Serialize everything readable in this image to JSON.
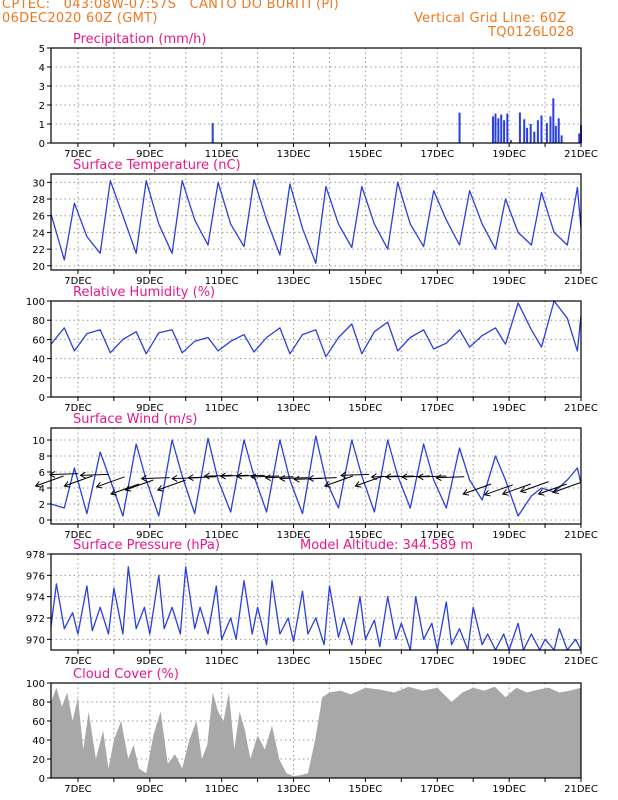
{
  "header": {
    "line1": "CPTEC:   043:08W-07:57S   CANTO DO BURITI (PI)",
    "line2": "06DEC2020 60Z (GMT)",
    "grid_note": "Vertical Grid Line: 60Z",
    "model": "TQ0126L028"
  },
  "colors": {
    "header": "#f07820",
    "title": "#e8178a",
    "series": "#2a3fe0",
    "cloud": "#a8a8a8"
  },
  "chart_data": [
    {
      "id": "precip",
      "type": "bar",
      "title": "Precipitation (mm/h)",
      "ylim": [
        0,
        5
      ],
      "yticks": [
        0,
        1,
        2,
        3,
        4,
        5
      ],
      "xlim": [
        6.25,
        21
      ],
      "xticks": [
        "7DEC",
        "9DEC",
        "11DEC",
        "13DEC",
        "15DEC",
        "17DEC",
        "19DEC",
        "21DEC"
      ],
      "grid": true,
      "x": [
        10.75,
        17.62,
        18.55,
        18.62,
        18.7,
        18.78,
        18.86,
        18.95,
        19.05,
        19.3,
        19.42,
        19.5,
        19.6,
        19.7,
        19.8,
        19.9,
        20.05,
        20.15,
        20.23,
        20.3,
        20.38,
        20.46,
        20.95,
        21.0
      ],
      "values": [
        1.05,
        1.6,
        1.4,
        1.55,
        1.3,
        1.5,
        1.2,
        1.55,
        0.15,
        1.6,
        1.25,
        0.8,
        1.0,
        0.6,
        1.2,
        1.45,
        1.05,
        1.4,
        2.35,
        0.9,
        1.3,
        0.4,
        0.5,
        0.95
      ]
    },
    {
      "id": "temp",
      "type": "line",
      "title": "Surface Temperature (nC)",
      "ylim": [
        19.5,
        31
      ],
      "yticks": [
        20,
        22,
        24,
        26,
        28,
        30
      ],
      "xlim": [
        6.25,
        21
      ],
      "xticks": [
        "7DEC",
        "9DEC",
        "11DEC",
        "13DEC",
        "15DEC",
        "17DEC",
        "19DEC",
        "21DEC"
      ],
      "grid": true,
      "series": [
        {
          "x": [
            6.25,
            6.5,
            6.62,
            6.9,
            7.25,
            7.62,
            7.9,
            8.25,
            8.62,
            8.9,
            9.25,
            9.62,
            9.9,
            10.25,
            10.62,
            10.9,
            11.25,
            11.62,
            11.9,
            12.25,
            12.62,
            12.9,
            13.25,
            13.62,
            13.9,
            14.25,
            14.62,
            14.9,
            15.25,
            15.62,
            15.9,
            16.25,
            16.62,
            16.9,
            17.25,
            17.62,
            17.9,
            18.25,
            18.62,
            18.9,
            19.25,
            19.62,
            19.9,
            20.25,
            20.62,
            20.9,
            21.0
          ],
          "values": [
            26.2,
            22.5,
            20.7,
            27.5,
            23.5,
            21.5,
            30.2,
            26,
            21.5,
            30.2,
            25,
            21.5,
            30.2,
            25.5,
            22.5,
            30,
            25,
            22.3,
            30.3,
            25.5,
            21.3,
            29.8,
            24.5,
            20.3,
            29.5,
            25,
            22.2,
            29.5,
            25,
            22,
            30,
            25,
            22.3,
            29,
            25.5,
            22.5,
            29,
            25,
            22,
            28,
            24,
            22.5,
            28.8,
            24,
            22.5,
            29.4,
            24.5
          ]
        }
      ]
    },
    {
      "id": "rh",
      "type": "line",
      "title": "Relative Humidity (%)",
      "ylim": [
        0,
        100
      ],
      "yticks": [
        0,
        20,
        40,
        60,
        80,
        100
      ],
      "xlim": [
        6.25,
        21
      ],
      "xticks": [
        "7DEC",
        "9DEC",
        "11DEC",
        "13DEC",
        "15DEC",
        "17DEC",
        "19DEC",
        "21DEC"
      ],
      "grid": true,
      "series": [
        {
          "x": [
            6.25,
            6.62,
            6.9,
            7.25,
            7.62,
            7.9,
            8.25,
            8.62,
            8.9,
            9.25,
            9.62,
            9.9,
            10.25,
            10.62,
            10.9,
            11.25,
            11.62,
            11.9,
            12.25,
            12.62,
            12.9,
            13.25,
            13.62,
            13.9,
            14.25,
            14.62,
            14.9,
            15.25,
            15.62,
            15.9,
            16.25,
            16.62,
            16.9,
            17.25,
            17.62,
            17.9,
            18.25,
            18.62,
            18.9,
            19.25,
            19.62,
            19.9,
            20.25,
            20.62,
            20.9,
            21.0
          ],
          "values": [
            55,
            72,
            48,
            66,
            70,
            46,
            60,
            68,
            45,
            67,
            70,
            46,
            58,
            62,
            48,
            58,
            65,
            47,
            62,
            72,
            45,
            65,
            70,
            42,
            62,
            76,
            45,
            68,
            78,
            48,
            62,
            70,
            50,
            56,
            70,
            52,
            64,
            72,
            55,
            98,
            70,
            52,
            100,
            82,
            48,
            85
          ]
        }
      ]
    },
    {
      "id": "wind",
      "type": "line",
      "title": "Surface Wind (m/s)",
      "ylim": [
        -0.5,
        11.5
      ],
      "yticks": [
        0,
        2,
        4,
        6,
        8,
        10
      ],
      "xlim": [
        6.25,
        21
      ],
      "xticks": [
        "7DEC",
        "9DEC",
        "11DEC",
        "13DEC",
        "15DEC",
        "17DEC",
        "19DEC",
        "21DEC"
      ],
      "grid": true,
      "series": [
        {
          "x": [
            6.25,
            6.62,
            6.9,
            7.25,
            7.62,
            7.9,
            8.25,
            8.62,
            8.9,
            9.25,
            9.62,
            9.9,
            10.25,
            10.62,
            10.9,
            11.25,
            11.62,
            11.9,
            12.25,
            12.62,
            12.9,
            13.25,
            13.62,
            13.9,
            14.25,
            14.62,
            14.9,
            15.25,
            15.62,
            15.9,
            16.25,
            16.62,
            16.9,
            17.25,
            17.62,
            17.9,
            18.25,
            18.62,
            18.9,
            19.25,
            19.62,
            19.9,
            20.25,
            20.62,
            20.9,
            21.0
          ],
          "values": [
            2,
            1.5,
            6.5,
            0.8,
            8.5,
            5,
            0.5,
            9.5,
            5,
            0.5,
            10,
            5.5,
            0.8,
            10.2,
            5,
            1,
            10,
            5.5,
            1,
            10,
            5,
            0.8,
            10.5,
            5,
            1.5,
            10,
            5.5,
            1,
            10,
            5.5,
            1.5,
            9.5,
            5,
            1.5,
            9,
            5,
            2.5,
            8,
            5,
            0.5,
            3,
            4,
            3.5,
            5,
            6.5,
            4.5
          ]
        }
      ]
    },
    {
      "id": "pressure",
      "type": "line",
      "title": "Surface Pressure (hPa)",
      "annotation": "Model Altitude: 344.589 m",
      "ylim": [
        969,
        978
      ],
      "yticks": [
        970,
        972,
        974,
        976,
        978
      ],
      "xlim": [
        6.25,
        21
      ],
      "xticks": [
        "7DEC",
        "9DEC",
        "11DEC",
        "13DEC",
        "15DEC",
        "17DEC",
        "19DEC",
        "21DEC"
      ],
      "grid": true,
      "series": [
        {
          "x": [
            6.25,
            6.4,
            6.62,
            6.85,
            7.0,
            7.25,
            7.4,
            7.62,
            7.85,
            8.0,
            8.25,
            8.4,
            8.62,
            8.85,
            9.0,
            9.25,
            9.4,
            9.62,
            9.85,
            10.0,
            10.25,
            10.4,
            10.62,
            10.85,
            11.0,
            11.25,
            11.4,
            11.62,
            11.85,
            12.0,
            12.25,
            12.4,
            12.62,
            12.85,
            13.0,
            13.25,
            13.4,
            13.62,
            13.85,
            14.0,
            14.25,
            14.4,
            14.62,
            14.85,
            15.0,
            15.25,
            15.4,
            15.62,
            15.85,
            16.0,
            16.25,
            16.4,
            16.62,
            16.85,
            17.0,
            17.25,
            17.4,
            17.62,
            17.85,
            18.0,
            18.25,
            18.4,
            18.62,
            18.85,
            19.0,
            19.25,
            19.4,
            19.62,
            19.85,
            20.0,
            20.25,
            20.4,
            20.62,
            20.85,
            21.0
          ],
          "values": [
            971.2,
            975.2,
            971,
            972.5,
            970.5,
            975,
            970.8,
            973,
            970.5,
            974.8,
            970.5,
            976.8,
            971,
            973,
            970.5,
            976,
            971,
            973,
            970.5,
            976.8,
            971,
            973,
            970.5,
            975,
            970,
            972,
            970,
            975.5,
            970.5,
            973,
            969.5,
            975.5,
            970.5,
            972,
            969.8,
            974.5,
            970.5,
            972,
            969.5,
            975,
            970.2,
            972,
            969.5,
            974,
            970,
            971.8,
            969.3,
            974,
            970,
            971.5,
            969,
            974,
            970,
            971.5,
            969,
            973.5,
            969.5,
            971,
            969,
            973,
            969.5,
            970.5,
            969,
            970.5,
            969,
            971.5,
            969,
            970.5,
            969,
            970,
            969,
            971,
            969,
            970,
            969
          ]
        }
      ]
    },
    {
      "id": "cloud",
      "type": "area",
      "title": "Cloud Cover (%)",
      "ylim": [
        0,
        100
      ],
      "yticks": [
        0,
        20,
        40,
        60,
        80,
        100
      ],
      "xlim": [
        6.25,
        21
      ],
      "xticks": [
        "7DEC",
        "9DEC",
        "11DEC",
        "13DEC",
        "15DEC",
        "17DEC",
        "19DEC",
        "21DEC"
      ],
      "grid": true,
      "series": [
        {
          "x": [
            6.25,
            6.4,
            6.55,
            6.7,
            6.85,
            7.0,
            7.15,
            7.3,
            7.5,
            7.7,
            7.85,
            8.0,
            8.2,
            8.4,
            8.55,
            8.7,
            8.9,
            9.1,
            9.3,
            9.5,
            9.7,
            9.9,
            10.1,
            10.3,
            10.45,
            10.6,
            10.75,
            10.9,
            11.05,
            11.2,
            11.35,
            11.5,
            11.65,
            11.8,
            12.0,
            12.2,
            12.4,
            12.6,
            12.8,
            13.0,
            13.2,
            13.4,
            13.6,
            13.8,
            14.0,
            14.3,
            14.6,
            15.0,
            15.4,
            15.8,
            16.2,
            16.6,
            17.0,
            17.4,
            17.7,
            18.0,
            18.3,
            18.6,
            18.9,
            19.2,
            19.5,
            19.8,
            20.1,
            20.4,
            20.7,
            21.0
          ],
          "values": [
            80,
            95,
            75,
            90,
            60,
            85,
            30,
            70,
            20,
            50,
            10,
            40,
            60,
            20,
            35,
            10,
            5,
            45,
            70,
            15,
            25,
            10,
            40,
            60,
            20,
            35,
            90,
            70,
            60,
            90,
            30,
            70,
            50,
            20,
            45,
            30,
            55,
            20,
            5,
            2,
            3,
            5,
            40,
            85,
            90,
            92,
            88,
            95,
            93,
            90,
            96,
            92,
            95,
            80,
            90,
            95,
            92,
            96,
            85,
            95,
            90,
            93,
            95,
            90,
            92,
            95
          ]
        }
      ]
    },
    {
      "id": "wind-vectors",
      "type": "scatter",
      "x": [
        6.6,
        7.0,
        7.4,
        7.85,
        8.3,
        8.7,
        9.1,
        9.55,
        10.0,
        10.4,
        10.85,
        11.3,
        11.75,
        12.2,
        12.6,
        13.0,
        13.4,
        13.8,
        14.2,
        14.65,
        15.1,
        15.5,
        15.95,
        16.35,
        16.8,
        17.25,
        17.75,
        18.5,
        19.1,
        19.6,
        20.1,
        20.6,
        21.0
      ],
      "values": [
        5.5,
        5.8,
        5.5,
        5.7,
        5.4,
        4.5,
        5.0,
        5.3,
        5.0,
        5.3,
        5.4,
        5.6,
        5.6,
        5.6,
        5.5,
        5.4,
        5.3,
        5.2,
        5.3,
        5.5,
        5.7,
        5.5,
        5.5,
        5.5,
        5.5,
        5.5,
        5.4,
        4.5,
        4.4,
        4.5,
        4.8,
        4.5,
        4.7
      ],
      "direction": [
        "sw",
        "w",
        "sw",
        "w",
        "sw",
        "sw",
        "sw",
        "w",
        "sw",
        "w",
        "w",
        "w",
        "w",
        "w",
        "w",
        "w",
        "w",
        "w",
        "w",
        "sw",
        "w",
        "sw",
        "w",
        "w",
        "w",
        "w",
        "w",
        "sw",
        "sw",
        "sw",
        "sw",
        "sw",
        "sw"
      ]
    }
  ]
}
